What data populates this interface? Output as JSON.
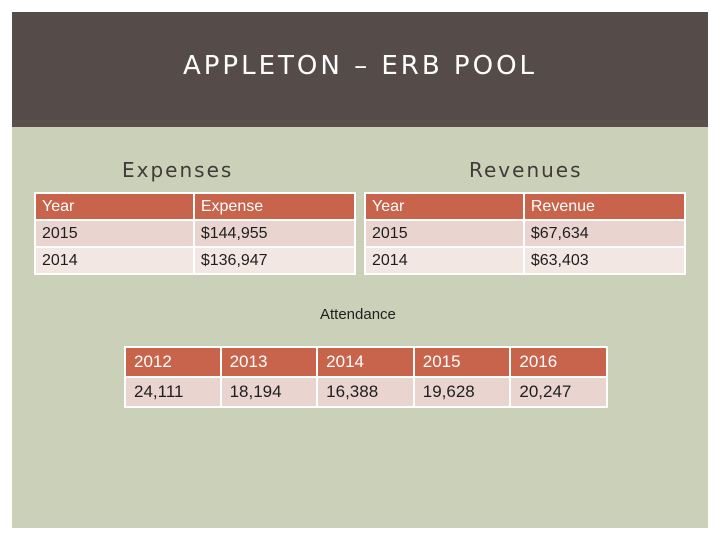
{
  "slide": {
    "title": "APPLETON – ERB POOL"
  },
  "expenses": {
    "heading": "Expenses",
    "columns": [
      "Year",
      "Expense"
    ],
    "rows": [
      [
        "2015",
        "$144,955"
      ],
      [
        "2014",
        "$136,947"
      ]
    ]
  },
  "revenues": {
    "heading": "Revenues",
    "columns": [
      "Year",
      "Revenue"
    ],
    "rows": [
      [
        "2015",
        "$67,634"
      ],
      [
        "2014",
        "$63,403"
      ]
    ]
  },
  "attendance": {
    "caption": "Attendance",
    "years": [
      "2012",
      "2013",
      "2014",
      "2015",
      "2016"
    ],
    "counts": [
      "24,111",
      "18,194",
      "16,388",
      "19,628",
      "20,247"
    ]
  },
  "colors": {
    "title_band": "#554b49",
    "content_background": "#cbd0b9",
    "table_header": "#c9644c",
    "table_row_odd": "#e9d4d0",
    "table_row_even": "#f3e7e4"
  }
}
